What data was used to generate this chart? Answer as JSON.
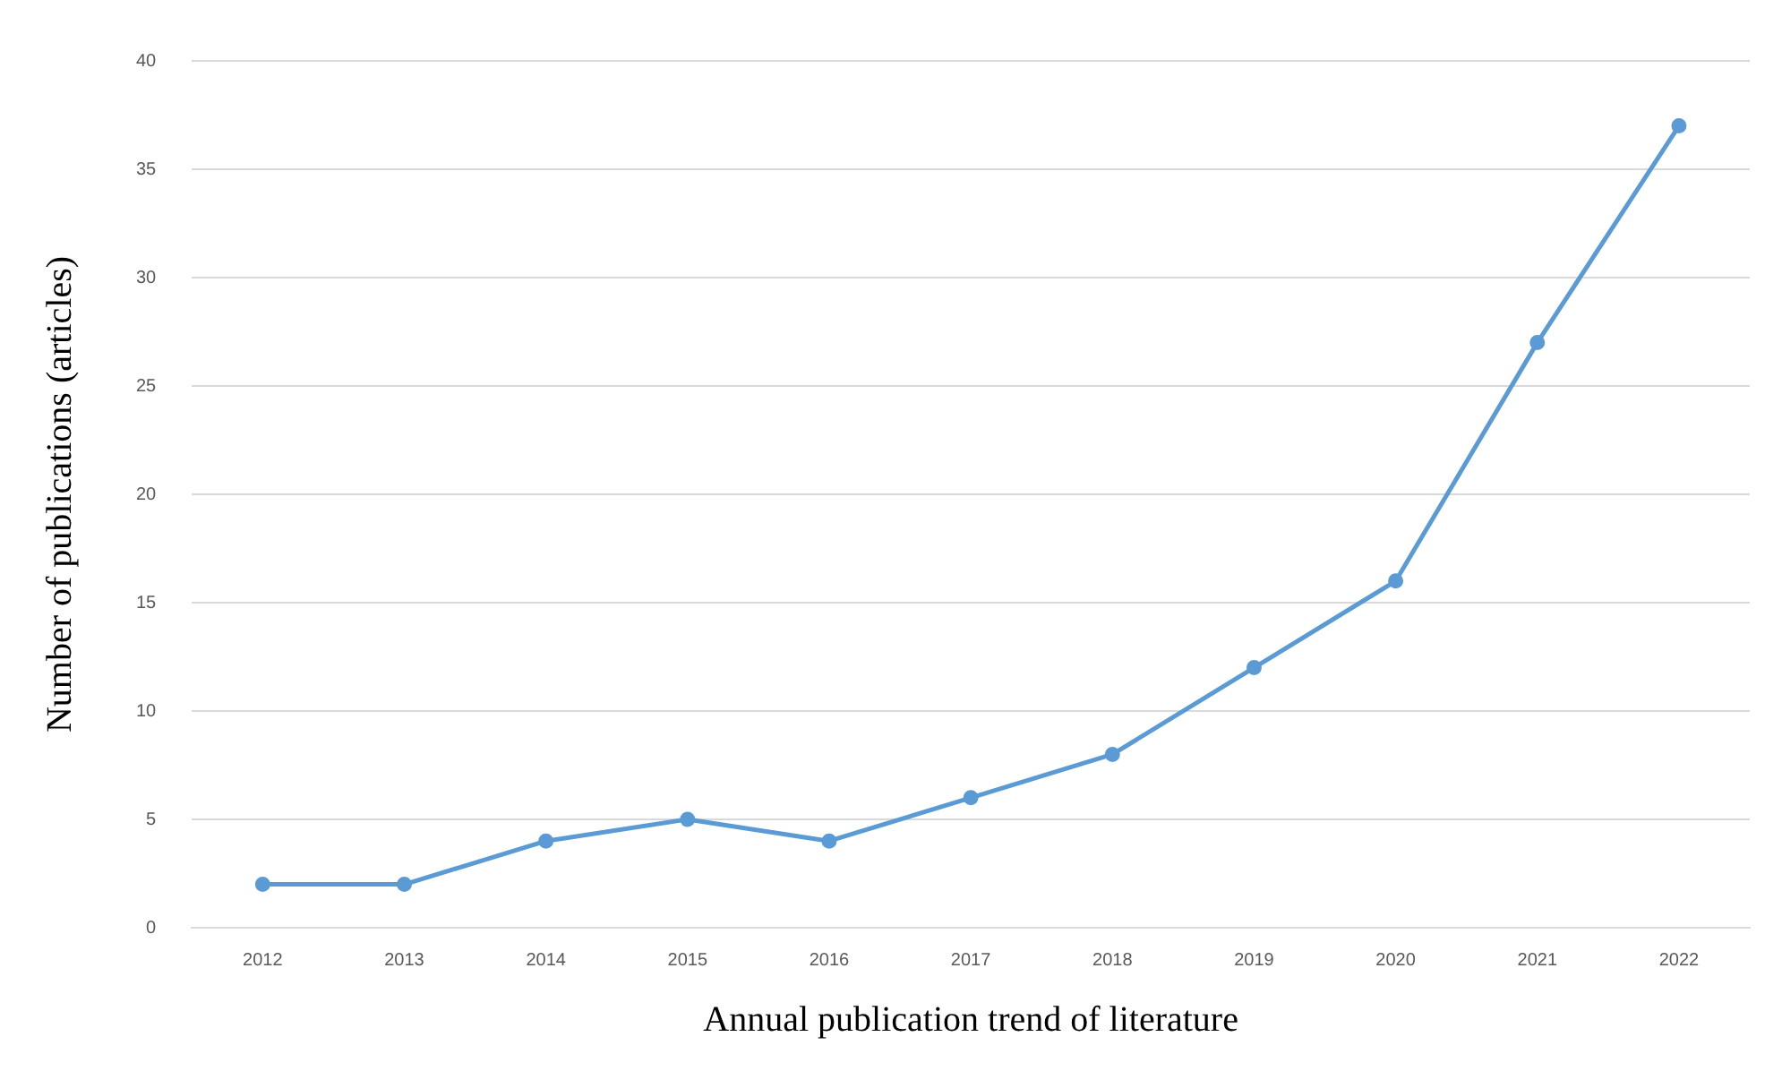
{
  "chart_data": {
    "type": "line",
    "xlabel": "Annual publication trend of literature",
    "ylabel": "Number of publications (articles)",
    "categories": [
      "2012",
      "2013",
      "2014",
      "2015",
      "2016",
      "2017",
      "2018",
      "2019",
      "2020",
      "2021",
      "2022"
    ],
    "series": [
      {
        "color": "#5b9bd5",
        "values": [
          2,
          2,
          4,
          5,
          4,
          6,
          8,
          12,
          16,
          27,
          37
        ]
      }
    ],
    "ylim": [
      0,
      40
    ],
    "yticks": [
      0,
      5,
      10,
      15,
      20,
      25,
      30,
      35,
      40
    ],
    "grid": "y",
    "legend": false,
    "marker": "circle",
    "line_style": "solid"
  }
}
